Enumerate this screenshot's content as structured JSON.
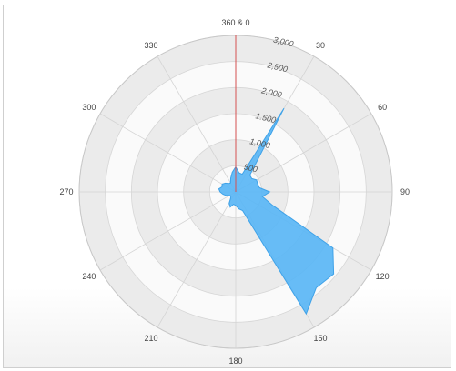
{
  "chart_data": {
    "type": "area",
    "subtype": "polar",
    "title": "",
    "angle_labels": [
      "360 & 0",
      "30",
      "60",
      "90",
      "120",
      "150",
      "180",
      "210",
      "240",
      "270",
      "300",
      "330"
    ],
    "angle_ticks": [
      0,
      30,
      60,
      90,
      120,
      150,
      180,
      210,
      240,
      270,
      300,
      330
    ],
    "radial_labels": [
      "500",
      "1,000",
      "1.500",
      "2,000",
      "2,500",
      "3,000"
    ],
    "radial_ticks": [
      500,
      1000,
      1500,
      2000,
      2500,
      3000
    ],
    "rlim": [
      0,
      3000
    ],
    "grid": true,
    "alternating_bands": true,
    "series": [
      {
        "color": "#5ab6f5",
        "direction": [
          0,
          10,
          20,
          30,
          40,
          50,
          60,
          70,
          80,
          90,
          100,
          110,
          120,
          130,
          140,
          150,
          160,
          170,
          180,
          190,
          200,
          210,
          220,
          230,
          240,
          250,
          260,
          270,
          280,
          290,
          300,
          310,
          320,
          330,
          340,
          350
        ],
        "values": [
          480,
          370,
          360,
          1850,
          420,
          400,
          460,
          450,
          460,
          650,
          520,
          750,
          2150,
          2450,
          2400,
          2700,
          380,
          330,
          260,
          240,
          310,
          250,
          150,
          120,
          140,
          200,
          250,
          300,
          330,
          280,
          300,
          260,
          210,
          200,
          280,
          380
        ]
      }
    ]
  }
}
